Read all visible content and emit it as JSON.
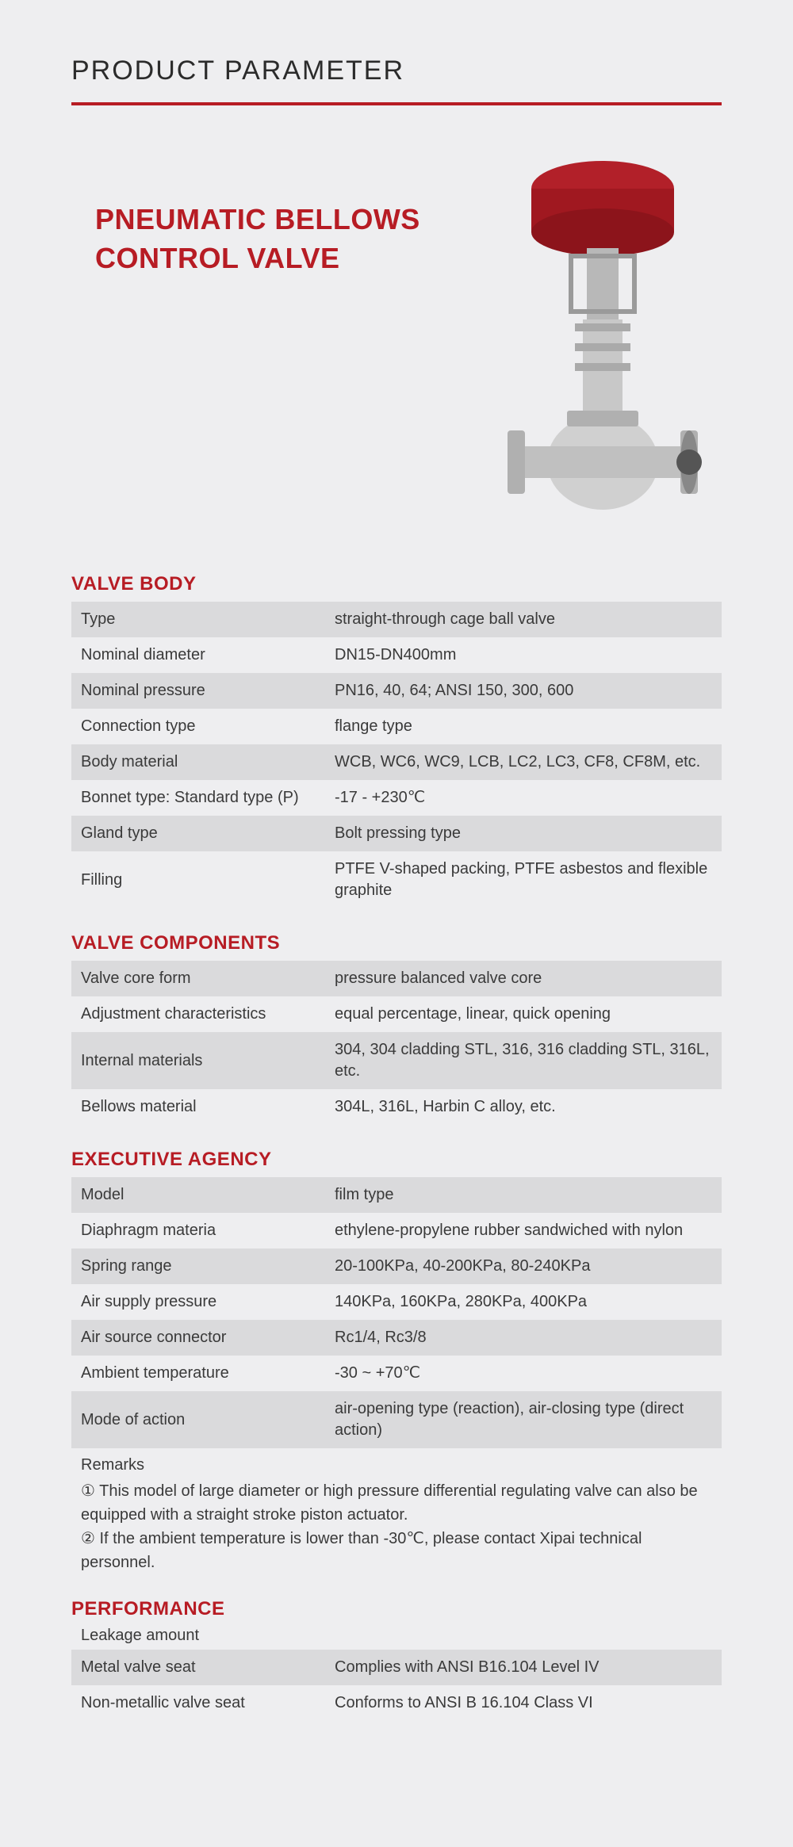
{
  "header": {
    "title": "PRODUCT PARAMETER"
  },
  "product": {
    "title": "PNEUMATIC BELLOWS CONTROL VALVE"
  },
  "colors": {
    "accent": "#b71c24",
    "bg": "#eeeef0",
    "row_shade": "#dadadc",
    "text": "#3a3a3a",
    "actuator_red": "#a01820",
    "metal_light": "#d0d0d0",
    "metal_dark": "#9a9a9a"
  },
  "sections": {
    "valve_body": {
      "title": "VALVE BODY",
      "rows": [
        {
          "label": "Type",
          "value": "straight-through cage ball valve",
          "shaded": true
        },
        {
          "label": "Nominal diameter",
          "value": "DN15-DN400mm",
          "shaded": false
        },
        {
          "label": "Nominal pressure",
          "value": "PN16, 40, 64; ANSI 150, 300, 600",
          "shaded": true
        },
        {
          "label": "Connection type",
          "value": "flange type",
          "shaded": false
        },
        {
          "label": "Body material",
          "value": "WCB, WC6, WC9, LCB, LC2, LC3, CF8, CF8M, etc.",
          "shaded": true
        },
        {
          "label": "Bonnet type: Standard type (P)",
          "value": "-17 - +230℃",
          "shaded": false
        },
        {
          "label": "Gland type",
          "value": "Bolt pressing type",
          "shaded": true
        },
        {
          "label": "Filling",
          "value": "PTFE V-shaped packing, PTFE asbestos and flexible graphite",
          "shaded": false
        }
      ]
    },
    "valve_components": {
      "title": "VALVE COMPONENTS",
      "rows": [
        {
          "label": "Valve core form",
          "value": "pressure balanced valve core",
          "shaded": true
        },
        {
          "label": "Adjustment characteristics",
          "value": "equal percentage, linear, quick opening",
          "shaded": false
        },
        {
          "label": "Internal materials",
          "value": "304, 304 cladding STL, 316, 316 cladding STL, 316L, etc.",
          "shaded": true
        },
        {
          "label": "Bellows material",
          "value": "304L, 316L, Harbin C alloy, etc.",
          "shaded": false
        }
      ]
    },
    "executive_agency": {
      "title": "EXECUTIVE AGENCY",
      "rows": [
        {
          "label": "Model",
          "value": "film type",
          "shaded": true
        },
        {
          "label": "Diaphragm materia",
          "value": "ethylene-propylene rubber sandwiched with nylon",
          "shaded": false
        },
        {
          "label": "Spring range",
          "value": "20-100KPa, 40-200KPa, 80-240KPa",
          "shaded": true
        },
        {
          "label": "Air supply pressure",
          "value": "140KPa, 160KPa, 280KPa, 400KPa",
          "shaded": false
        },
        {
          "label": "Air source connector",
          "value": "Rc1/4, Rc3/8",
          "shaded": true
        },
        {
          "label": "Ambient temperature",
          "value": "-30 ~ +70℃",
          "shaded": false
        },
        {
          "label": "Mode of action",
          "value": "air-opening type (reaction), air-closing type (direct action)",
          "shaded": true
        }
      ],
      "remarks_label": "Remarks",
      "remarks": [
        "① This model of large diameter or high pressure differential regulating valve can also be equipped with a straight stroke piston actuator.",
        "② If the ambient temperature is lower than -30℃, please contact Xipai technical personnel."
      ]
    },
    "performance": {
      "title": "PERFORMANCE",
      "subheader": "Leakage amount",
      "rows": [
        {
          "label": "Metal valve seat",
          "value": "Complies with ANSI B16.104 Level IV",
          "shaded": true
        },
        {
          "label": "Non-metallic valve seat",
          "value": "Conforms to ANSI B 16.104 Class VI",
          "shaded": false
        }
      ]
    }
  }
}
